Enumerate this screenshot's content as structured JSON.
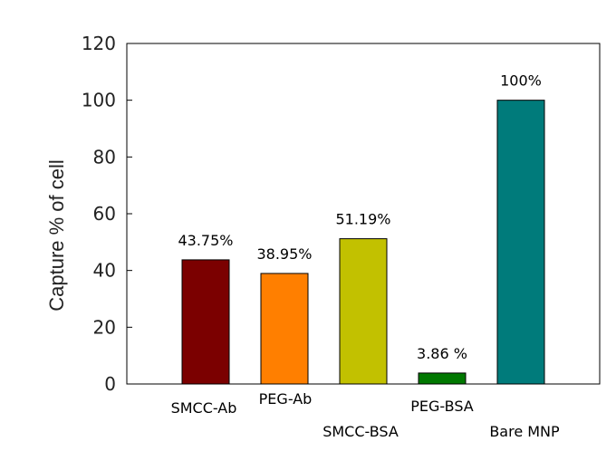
{
  "chart_data": {
    "type": "bar",
    "categories": [
      "SMCC-Ab",
      "PEG-Ab",
      "SMCC-BSA",
      "PEG-BSA",
      "Bare MNP"
    ],
    "values": [
      43.75,
      38.95,
      51.19,
      3.86,
      100
    ],
    "data_labels": [
      "43.75%",
      "38.95%",
      "51.19%",
      "3.86 %",
      "100%"
    ],
    "colors": [
      "#7b0000",
      "#ff7f00",
      "#c2c100",
      "#007800",
      "#007b7b"
    ],
    "title": "",
    "xlabel": "",
    "ylabel": "Capture % of cell",
    "ylim": [
      0,
      120
    ],
    "yticks": [
      0,
      20,
      40,
      60,
      80,
      100,
      120
    ],
    "grid": false,
    "legend": "none"
  }
}
